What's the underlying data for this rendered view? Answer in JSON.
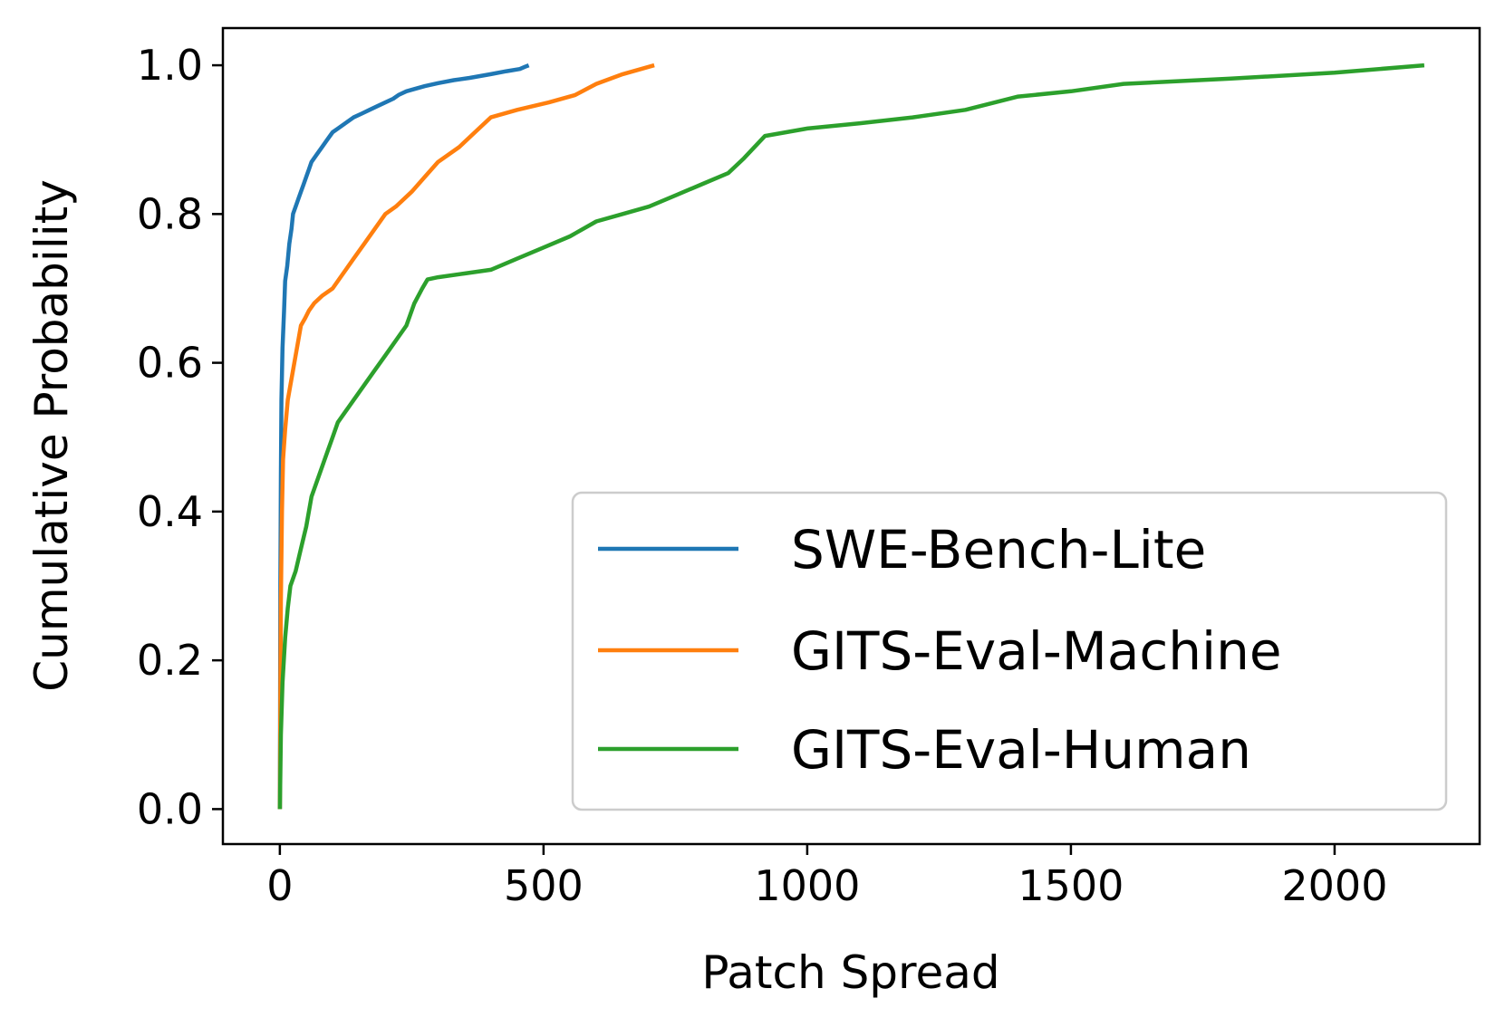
{
  "chart_data": {
    "type": "line",
    "xlabel": "Patch Spread",
    "ylabel": "Cumulative Probability",
    "xlim": [
      -108,
      2275
    ],
    "ylim": [
      -0.047,
      1.05
    ],
    "xticks": [
      0,
      500,
      1000,
      1500,
      2000
    ],
    "xtick_labels": [
      "0",
      "500",
      "1000",
      "1500",
      "2000"
    ],
    "yticks": [
      0.0,
      0.2,
      0.4,
      0.6,
      0.8,
      1.0
    ],
    "ytick_labels": [
      "0.0",
      "0.2",
      "0.4",
      "0.6",
      "0.8",
      "1.0"
    ],
    "grid": false,
    "legend": "bottom-right",
    "series": [
      {
        "name": "SWE-Bench-Lite",
        "color": "#1f77b4",
        "x": [
          0,
          1,
          2,
          3,
          5,
          8,
          10,
          14,
          18,
          22,
          25,
          30,
          35,
          40,
          45,
          50,
          55,
          60,
          65,
          70,
          80,
          90,
          100,
          110,
          120,
          130,
          140,
          155,
          170,
          185,
          200,
          215,
          225,
          240,
          255,
          275,
          300,
          330,
          360,
          400,
          430,
          455,
          465,
          472
        ],
        "y": [
          0.0,
          0.3,
          0.45,
          0.55,
          0.62,
          0.67,
          0.71,
          0.73,
          0.76,
          0.78,
          0.8,
          0.81,
          0.82,
          0.83,
          0.84,
          0.85,
          0.86,
          0.87,
          0.875,
          0.88,
          0.89,
          0.9,
          0.91,
          0.915,
          0.92,
          0.925,
          0.93,
          0.935,
          0.94,
          0.945,
          0.95,
          0.955,
          0.96,
          0.965,
          0.968,
          0.972,
          0.976,
          0.98,
          0.983,
          0.988,
          0.992,
          0.995,
          0.998,
          1.0
        ]
      },
      {
        "name": "GITS-Eval-Machine",
        "color": "#ff7f0e",
        "x": [
          0,
          1,
          2,
          4,
          6,
          10,
          15,
          20,
          25,
          30,
          35,
          40,
          48,
          55,
          65,
          80,
          100,
          120,
          140,
          160,
          180,
          200,
          220,
          250,
          275,
          300,
          340,
          370,
          400,
          450,
          510,
          560,
          600,
          650,
          710
        ],
        "y": [
          0.0,
          0.15,
          0.28,
          0.4,
          0.47,
          0.51,
          0.55,
          0.57,
          0.59,
          0.61,
          0.63,
          0.65,
          0.66,
          0.67,
          0.68,
          0.69,
          0.7,
          0.72,
          0.74,
          0.76,
          0.78,
          0.8,
          0.81,
          0.83,
          0.85,
          0.87,
          0.89,
          0.91,
          0.93,
          0.94,
          0.95,
          0.96,
          0.975,
          0.988,
          1.0
        ]
      },
      {
        "name": "GITS-Eval-Human",
        "color": "#2ca02c",
        "x": [
          0,
          2,
          5,
          10,
          15,
          20,
          30,
          40,
          50,
          60,
          70,
          80,
          90,
          100,
          110,
          120,
          140,
          160,
          180,
          200,
          220,
          240,
          255,
          270,
          280,
          300,
          350,
          400,
          450,
          500,
          550,
          600,
          650,
          700,
          750,
          800,
          850,
          880,
          920,
          1000,
          1100,
          1200,
          1300,
          1400,
          1500,
          1600,
          1800,
          2000,
          2170
        ],
        "y": [
          0.0,
          0.1,
          0.17,
          0.23,
          0.27,
          0.3,
          0.32,
          0.35,
          0.38,
          0.42,
          0.44,
          0.46,
          0.48,
          0.5,
          0.52,
          0.53,
          0.55,
          0.57,
          0.59,
          0.61,
          0.63,
          0.65,
          0.68,
          0.7,
          0.712,
          0.715,
          0.72,
          0.725,
          0.74,
          0.755,
          0.77,
          0.79,
          0.8,
          0.81,
          0.825,
          0.84,
          0.855,
          0.875,
          0.905,
          0.915,
          0.922,
          0.93,
          0.94,
          0.958,
          0.965,
          0.975,
          0.982,
          0.99,
          1.0
        ]
      }
    ]
  }
}
